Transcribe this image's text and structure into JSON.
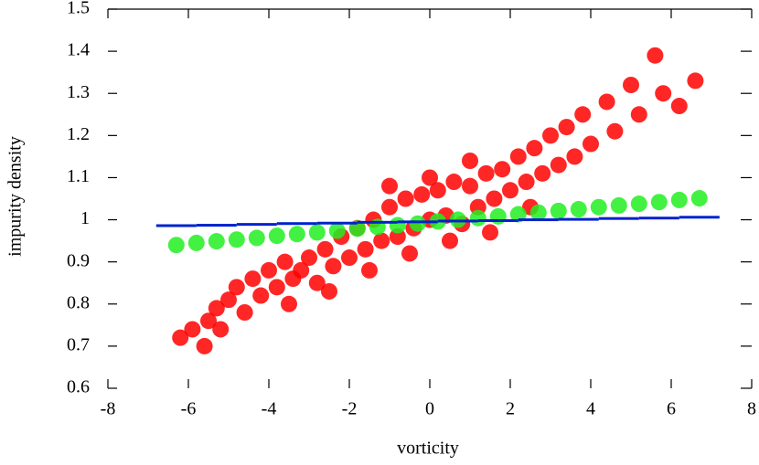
{
  "chart_data": {
    "type": "scatter",
    "x_label": "vorticity",
    "y_label": "impurity density",
    "xlim": [
      -8,
      8
    ],
    "ylim": [
      0.6,
      1.5
    ],
    "xticks": [
      -8,
      -6,
      -4,
      -2,
      0,
      2,
      4,
      6,
      8
    ],
    "yticks": [
      0.6,
      0.7,
      0.8,
      0.9,
      1,
      1.1,
      1.2,
      1.3,
      1.4,
      1.5
    ],
    "series": [
      {
        "color": "#ff0000",
        "marker": "dot",
        "x": [
          -6.2,
          -5.9,
          -5.6,
          -5.5,
          -5.3,
          -5.0,
          -5.2,
          -4.8,
          -4.6,
          -4.4,
          -4.2,
          -4.0,
          -3.8,
          -3.6,
          -3.4,
          -3.2,
          -3.0,
          -2.8,
          -2.6,
          -2.4,
          -2.2,
          -2.0,
          -1.8,
          -1.6,
          -1.4,
          -1.2,
          -1.0,
          -0.8,
          -0.6,
          -0.4,
          -0.2,
          0,
          0.2,
          0.4,
          0.6,
          0.8,
          1.0,
          1.2,
          1.4,
          1.6,
          1.8,
          2.0,
          2.2,
          2.4,
          2.6,
          2.8,
          3.0,
          3.2,
          3.4,
          3.6,
          3.8,
          4.0,
          4.4,
          4.6,
          5.0,
          5.2,
          5.6,
          5.8,
          6.2,
          6.6,
          -3.5,
          -2.5,
          -1.5,
          -0.5,
          0.5,
          1.5,
          2.5,
          -1.0,
          0.0,
          1.0
        ],
        "values": [
          0.72,
          0.74,
          0.7,
          0.76,
          0.79,
          0.81,
          0.74,
          0.84,
          0.78,
          0.86,
          0.82,
          0.88,
          0.84,
          0.9,
          0.86,
          0.88,
          0.91,
          0.85,
          0.93,
          0.89,
          0.96,
          0.91,
          0.98,
          0.93,
          1.0,
          0.95,
          1.03,
          0.96,
          1.05,
          0.98,
          1.06,
          1.0,
          1.07,
          1.01,
          1.09,
          0.99,
          1.08,
          1.03,
          1.11,
          1.05,
          1.12,
          1.07,
          1.15,
          1.09,
          1.17,
          1.11,
          1.2,
          1.13,
          1.22,
          1.15,
          1.25,
          1.18,
          1.28,
          1.21,
          1.32,
          1.25,
          1.39,
          1.3,
          1.27,
          1.33,
          0.8,
          0.83,
          0.88,
          0.92,
          0.95,
          0.97,
          1.03,
          1.08,
          1.1,
          1.14
        ]
      },
      {
        "color": "#22ee22",
        "marker": "dot",
        "x": [
          -6.3,
          -5.8,
          -5.3,
          -4.8,
          -4.3,
          -3.8,
          -3.3,
          -2.8,
          -2.3,
          -1.8,
          -1.3,
          -0.8,
          -0.3,
          0.2,
          0.7,
          1.2,
          1.7,
          2.2,
          2.7,
          3.2,
          3.7,
          4.2,
          4.7,
          5.2,
          5.7,
          6.2,
          6.7
        ],
        "values": [
          0.94,
          0.945,
          0.949,
          0.953,
          0.957,
          0.962,
          0.966,
          0.97,
          0.974,
          0.979,
          0.983,
          0.987,
          0.991,
          0.996,
          1.0,
          1.004,
          1.008,
          1.013,
          1.017,
          1.021,
          1.025,
          1.03,
          1.034,
          1.038,
          1.042,
          1.047,
          1.051
        ]
      },
      {
        "color": "#0022cc",
        "marker": "dash",
        "x": [
          -6.3,
          -5.3,
          -4.3,
          -3.3,
          -2.3,
          -1.3,
          -0.3,
          0.7,
          1.7,
          2.7,
          3.7,
          4.7,
          5.7,
          6.7
        ],
        "values": [
          0.986,
          0.987,
          0.989,
          0.991,
          0.992,
          0.994,
          0.995,
          0.997,
          0.998,
          1.0,
          1.001,
          1.003,
          1.004,
          1.006
        ]
      }
    ]
  }
}
